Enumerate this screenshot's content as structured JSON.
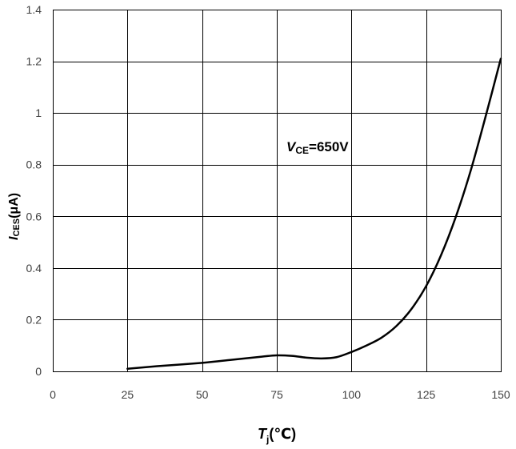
{
  "chart_data": {
    "type": "line",
    "title": "",
    "x_axis": {
      "label": {
        "main": "T",
        "sub": "j",
        "unit": "(℃)"
      },
      "range": [
        0,
        150
      ],
      "ticks": [
        0,
        25,
        50,
        75,
        100,
        125,
        150
      ],
      "tick_labels": [
        "0",
        "25",
        "50",
        "75",
        "100",
        "125",
        "150"
      ]
    },
    "y_axis": {
      "label": {
        "main": "I",
        "sub": "CES",
        "unit": "(μA)"
      },
      "range": [
        0,
        1.4
      ],
      "ticks": [
        0,
        0.2,
        0.4,
        0.6,
        0.8,
        1.0,
        1.2,
        1.4
      ],
      "tick_labels": [
        "0",
        "0.2",
        "0.4",
        "0.6",
        "0.8",
        "1",
        "1.2",
        "1.4"
      ]
    },
    "grid": true,
    "legend": "none",
    "annotation": {
      "main": "V",
      "sub": "CE",
      "rest": "=650V"
    },
    "series": [
      {
        "x": [
          25,
          35,
          50,
          60,
          70,
          75,
          80,
          85,
          90,
          95,
          100,
          105,
          110,
          115,
          120,
          125,
          130,
          135,
          140,
          145,
          150
        ],
        "y": [
          0.01,
          0.02,
          0.033,
          0.045,
          0.057,
          0.062,
          0.06,
          0.053,
          0.05,
          0.055,
          0.075,
          0.1,
          0.13,
          0.175,
          0.24,
          0.33,
          0.45,
          0.6,
          0.78,
          0.99,
          1.21
        ]
      }
    ],
    "colors": {
      "line": "#000000",
      "grid": "#000000",
      "text": "#404040"
    }
  }
}
